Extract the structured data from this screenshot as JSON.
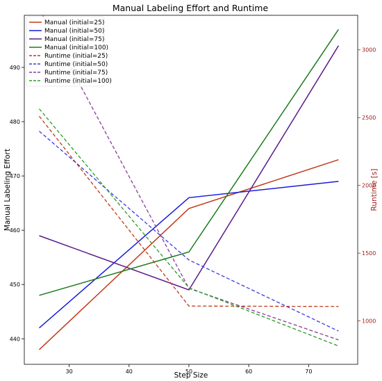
{
  "chart_data": {
    "type": "line",
    "title": "Manual Labeling Effort and Runtime",
    "xlabel": "Step Size",
    "ylabel": "Manual Labeling Effort",
    "y2label": "Runtime [s]",
    "x": [
      25,
      50,
      75
    ],
    "xlim": [
      22.5,
      78.2
    ],
    "ylim": [
      435.3,
      499.6
    ],
    "y2lim": [
      680,
      3255
    ],
    "xticks": [
      30,
      40,
      50,
      60,
      70
    ],
    "yticks": [
      440,
      450,
      460,
      470,
      480,
      490
    ],
    "y2ticks": [
      1000,
      1500,
      2000,
      2500,
      3000
    ],
    "legend_position": "top-left",
    "grid": false,
    "series": [
      {
        "name": "Manual (initial=25)",
        "axis": "left",
        "style": "solid",
        "color": "#c0391b",
        "values": [
          438,
          464,
          473
        ]
      },
      {
        "name": "Manual (initial=50)",
        "axis": "left",
        "style": "solid",
        "color": "#1a1adb",
        "values": [
          442,
          466,
          469
        ]
      },
      {
        "name": "Manual (initial=75)",
        "axis": "left",
        "style": "solid",
        "color": "#5a1a8a",
        "values": [
          459,
          449,
          494
        ]
      },
      {
        "name": "Manual (initial=100)",
        "axis": "left",
        "style": "solid",
        "color": "#1a7a1a",
        "values": [
          448,
          456,
          497
        ]
      },
      {
        "name": "Runtime (initial=25)",
        "axis": "right",
        "style": "dashed",
        "color": "#c0391b",
        "values": [
          2510,
          1110,
          1107
        ]
      },
      {
        "name": "Runtime (initial=50)",
        "axis": "right",
        "style": "dashed",
        "color": "#3a3ae0",
        "values": [
          2400,
          1450,
          925
        ]
      },
      {
        "name": "Runtime (initial=75)",
        "axis": "right",
        "style": "dashed",
        "color": "#8a3a9a",
        "values": [
          3305,
          1240,
          860
        ]
      },
      {
        "name": "Runtime (initial=100)",
        "axis": "right",
        "style": "dashed",
        "color": "#2a9a2a",
        "values": [
          2565,
          1245,
          815
        ]
      }
    ]
  }
}
